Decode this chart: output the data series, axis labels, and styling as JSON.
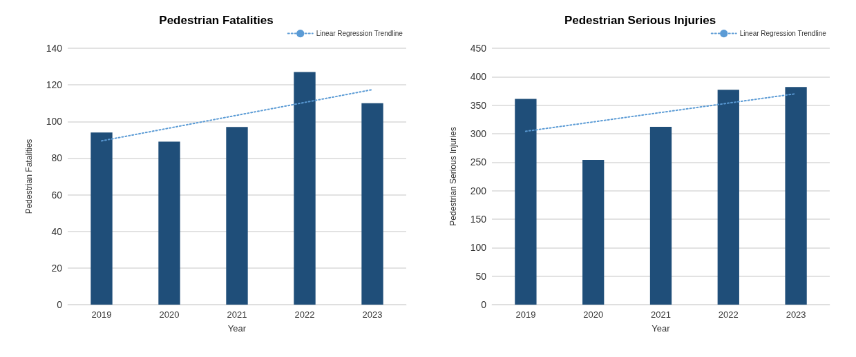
{
  "chart_data": [
    {
      "type": "bar",
      "title": "Pedestrian Fatalities",
      "xlabel": "Year",
      "ylabel": "Pedestrian Fatalities",
      "categories": [
        "2019",
        "2020",
        "2021",
        "2022",
        "2023"
      ],
      "ylim": [
        0,
        140
      ],
      "yticks": [
        0,
        20,
        40,
        60,
        80,
        100,
        120,
        140
      ],
      "grid": "y",
      "legend": "top right",
      "series": [
        {
          "color": "#1f4e79",
          "values": [
            94,
            89,
            97,
            127,
            110
          ]
        },
        {
          "name": "Linear Regression Trendline",
          "type": "line",
          "color": "#5b9bd5",
          "line_style": "dotted",
          "marker": "none",
          "values": [
            89.4,
            96.4,
            103.4,
            110.4,
            117.4
          ]
        }
      ]
    },
    {
      "type": "bar",
      "title": "Pedestrian Serious Injuries",
      "xlabel": "Year",
      "ylabel": "Pedestrian Serious Injuries",
      "categories": [
        "2019",
        "2020",
        "2021",
        "2022",
        "2023"
      ],
      "ylim": [
        0,
        450
      ],
      "yticks": [
        0,
        50,
        100,
        150,
        200,
        250,
        300,
        350,
        400,
        450
      ],
      "grid": "y",
      "legend": "top right",
      "series": [
        {
          "color": "#1f4e79",
          "values": [
            361,
            254,
            312,
            377,
            382
          ]
        },
        {
          "name": "Linear Regression Trendline",
          "type": "line",
          "color": "#5b9bd5",
          "line_style": "dotted",
          "marker": "none",
          "values": [
            304.2,
            320.7,
            337.2,
            353.7,
            370.2
          ]
        }
      ]
    }
  ]
}
